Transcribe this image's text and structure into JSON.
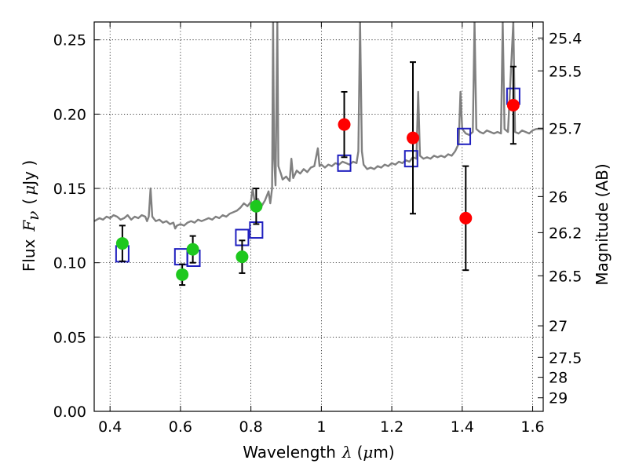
{
  "chart_data": {
    "type": "scatter",
    "title": "",
    "xlabel": {
      "pre": "Wavelength",
      "sym": "λ",
      "unit_open": "(",
      "unit_mu": "μ",
      "unit_rest": "m)"
    },
    "ylabel": {
      "pre": "Flux",
      "sym": "F",
      "sub": "ν",
      "unit_open": "(",
      "unit_mu": "μ",
      "unit_rest": "Jy )"
    },
    "y2label": "Magnitude (AB)",
    "xlim": [
      0.355,
      1.63
    ],
    "ylim": [
      0.0,
      0.262
    ],
    "x_ticks": [
      {
        "v": 0.4,
        "label": "0.4"
      },
      {
        "v": 0.6,
        "label": "0.6"
      },
      {
        "v": 0.8,
        "label": "0.8"
      },
      {
        "v": 1.0,
        "label": "1"
      },
      {
        "v": 1.2,
        "label": "1.2"
      },
      {
        "v": 1.4,
        "label": "1.4"
      },
      {
        "v": 1.6,
        "label": "1.6"
      }
    ],
    "y_ticks": [
      {
        "v": 0.0,
        "label": "0.00"
      },
      {
        "v": 0.05,
        "label": "0.05"
      },
      {
        "v": 0.1,
        "label": "0.10"
      },
      {
        "v": 0.15,
        "label": "0.15"
      },
      {
        "v": 0.2,
        "label": "0.20"
      },
      {
        "v": 0.25,
        "label": "0.25"
      }
    ],
    "y2_ticks": [
      "25.4",
      "25.5",
      "25.7",
      "26",
      "26.2",
      "26.5",
      "27",
      "27.5",
      "28",
      "29"
    ],
    "grid": true,
    "series": [
      {
        "kind": "model-spectrum",
        "color": "#808080",
        "points": [
          [
            0.355,
            0.128
          ],
          [
            0.37,
            0.13
          ],
          [
            0.38,
            0.129
          ],
          [
            0.39,
            0.131
          ],
          [
            0.4,
            0.13
          ],
          [
            0.41,
            0.132
          ],
          [
            0.42,
            0.131
          ],
          [
            0.43,
            0.129
          ],
          [
            0.44,
            0.13
          ],
          [
            0.45,
            0.132
          ],
          [
            0.46,
            0.129
          ],
          [
            0.47,
            0.131
          ],
          [
            0.48,
            0.13
          ],
          [
            0.49,
            0.132
          ],
          [
            0.5,
            0.131
          ],
          [
            0.505,
            0.128
          ],
          [
            0.51,
            0.131
          ],
          [
            0.515,
            0.15
          ],
          [
            0.52,
            0.131
          ],
          [
            0.53,
            0.128
          ],
          [
            0.54,
            0.129
          ],
          [
            0.55,
            0.127
          ],
          [
            0.56,
            0.128
          ],
          [
            0.57,
            0.126
          ],
          [
            0.58,
            0.127
          ],
          [
            0.585,
            0.123
          ],
          [
            0.59,
            0.125
          ],
          [
            0.6,
            0.126
          ],
          [
            0.61,
            0.125
          ],
          [
            0.62,
            0.127
          ],
          [
            0.63,
            0.128
          ],
          [
            0.64,
            0.127
          ],
          [
            0.65,
            0.129
          ],
          [
            0.66,
            0.128
          ],
          [
            0.67,
            0.129
          ],
          [
            0.68,
            0.13
          ],
          [
            0.69,
            0.129
          ],
          [
            0.7,
            0.131
          ],
          [
            0.71,
            0.13
          ],
          [
            0.72,
            0.132
          ],
          [
            0.73,
            0.131
          ],
          [
            0.74,
            0.133
          ],
          [
            0.75,
            0.134
          ],
          [
            0.76,
            0.135
          ],
          [
            0.77,
            0.137
          ],
          [
            0.78,
            0.14
          ],
          [
            0.79,
            0.138
          ],
          [
            0.8,
            0.141
          ],
          [
            0.805,
            0.15
          ],
          [
            0.81,
            0.142
          ],
          [
            0.815,
            0.14
          ],
          [
            0.82,
            0.143
          ],
          [
            0.83,
            0.138
          ],
          [
            0.84,
            0.142
          ],
          [
            0.85,
            0.148
          ],
          [
            0.855,
            0.14
          ],
          [
            0.86,
            0.15
          ],
          [
            0.863,
            0.262
          ],
          [
            0.866,
            0.17
          ],
          [
            0.87,
            0.152
          ],
          [
            0.875,
            0.262
          ],
          [
            0.878,
            0.165
          ],
          [
            0.885,
            0.16
          ],
          [
            0.89,
            0.156
          ],
          [
            0.9,
            0.158
          ],
          [
            0.91,
            0.155
          ],
          [
            0.915,
            0.17
          ],
          [
            0.92,
            0.157
          ],
          [
            0.93,
            0.162
          ],
          [
            0.94,
            0.16
          ],
          [
            0.95,
            0.163
          ],
          [
            0.96,
            0.161
          ],
          [
            0.97,
            0.164
          ],
          [
            0.98,
            0.165
          ],
          [
            0.99,
            0.177
          ],
          [
            0.995,
            0.165
          ],
          [
            1.0,
            0.166
          ],
          [
            1.01,
            0.164
          ],
          [
            1.02,
            0.166
          ],
          [
            1.03,
            0.165
          ],
          [
            1.04,
            0.167
          ],
          [
            1.05,
            0.166
          ],
          [
            1.06,
            0.168
          ],
          [
            1.07,
            0.167
          ],
          [
            1.08,
            0.166
          ],
          [
            1.09,
            0.168
          ],
          [
            1.1,
            0.167
          ],
          [
            1.105,
            0.175
          ],
          [
            1.11,
            0.262
          ],
          [
            1.115,
            0.175
          ],
          [
            1.12,
            0.166
          ],
          [
            1.13,
            0.163
          ],
          [
            1.14,
            0.164
          ],
          [
            1.15,
            0.163
          ],
          [
            1.16,
            0.165
          ],
          [
            1.17,
            0.164
          ],
          [
            1.18,
            0.166
          ],
          [
            1.19,
            0.165
          ],
          [
            1.2,
            0.167
          ],
          [
            1.21,
            0.166
          ],
          [
            1.22,
            0.168
          ],
          [
            1.23,
            0.167
          ],
          [
            1.24,
            0.169
          ],
          [
            1.25,
            0.168
          ],
          [
            1.26,
            0.171
          ],
          [
            1.27,
            0.17
          ],
          [
            1.275,
            0.215
          ],
          [
            1.28,
            0.172
          ],
          [
            1.29,
            0.17
          ],
          [
            1.3,
            0.171
          ],
          [
            1.31,
            0.17
          ],
          [
            1.32,
            0.172
          ],
          [
            1.33,
            0.171
          ],
          [
            1.34,
            0.172
          ],
          [
            1.35,
            0.171
          ],
          [
            1.36,
            0.173
          ],
          [
            1.37,
            0.172
          ],
          [
            1.38,
            0.175
          ],
          [
            1.39,
            0.18
          ],
          [
            1.395,
            0.215
          ],
          [
            1.4,
            0.19
          ],
          [
            1.41,
            0.187
          ],
          [
            1.42,
            0.186
          ],
          [
            1.43,
            0.188
          ],
          [
            1.435,
            0.262
          ],
          [
            1.44,
            0.19
          ],
          [
            1.45,
            0.188
          ],
          [
            1.46,
            0.187
          ],
          [
            1.47,
            0.189
          ],
          [
            1.48,
            0.188
          ],
          [
            1.49,
            0.187
          ],
          [
            1.5,
            0.188
          ],
          [
            1.51,
            0.187
          ],
          [
            1.515,
            0.262
          ],
          [
            1.52,
            0.19
          ],
          [
            1.53,
            0.188
          ],
          [
            1.545,
            0.262
          ],
          [
            1.55,
            0.188
          ],
          [
            1.56,
            0.187
          ],
          [
            1.57,
            0.189
          ],
          [
            1.58,
            0.188
          ],
          [
            1.59,
            0.187
          ],
          [
            1.6,
            0.189
          ],
          [
            1.61,
            0.19
          ],
          [
            1.62,
            0.19
          ],
          [
            1.63,
            0.19
          ]
        ]
      },
      {
        "kind": "model-bandpass",
        "color": "#1f1fbf",
        "points": [
          [
            0.435,
            0.106
          ],
          [
            0.602,
            0.104
          ],
          [
            0.637,
            0.103
          ],
          [
            0.775,
            0.117
          ],
          [
            0.815,
            0.122
          ],
          [
            1.065,
            0.167
          ],
          [
            1.255,
            0.17
          ],
          [
            1.405,
            0.185
          ],
          [
            1.545,
            0.212
          ]
        ]
      },
      {
        "kind": "optical-photometry",
        "color": "#1ec81e",
        "points": [
          [
            0.435,
            0.113,
            0.012
          ],
          [
            0.605,
            0.092,
            0.007
          ],
          [
            0.635,
            0.109,
            0.009
          ],
          [
            0.775,
            0.104,
            0.011
          ],
          [
            0.815,
            0.138,
            0.012
          ]
        ]
      },
      {
        "kind": "infrared-photometry",
        "color": "#ff0000",
        "points": [
          [
            1.065,
            0.193,
            0.022
          ],
          [
            1.26,
            0.184,
            0.051
          ],
          [
            1.41,
            0.13,
            0.035
          ],
          [
            1.545,
            0.206,
            0.026
          ]
        ]
      }
    ]
  }
}
